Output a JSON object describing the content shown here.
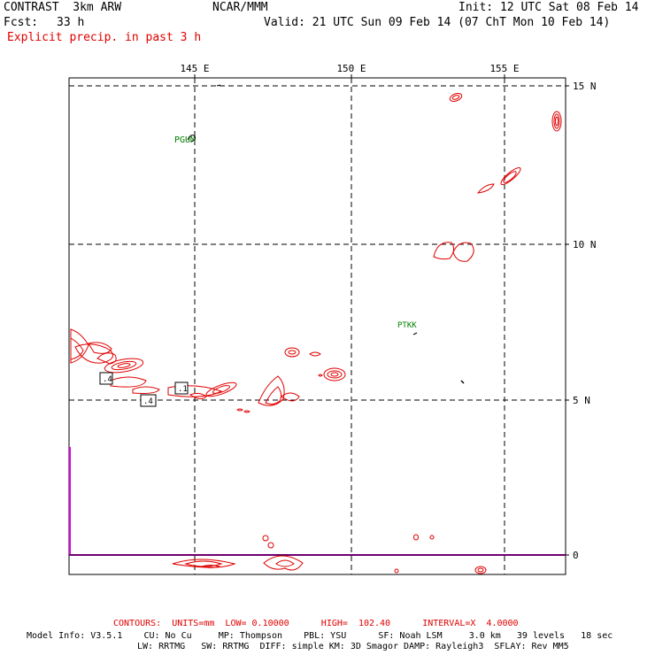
{
  "header": {
    "model": "CONTRAST  3km ARW",
    "org": "NCAR/MMM",
    "init": "Init: 12 UTC Sat 08 Feb 14",
    "fcst_label": "Fcst:",
    "fcst_value": "33 h",
    "valid": "Valid: 21 UTC Sun 09 Feb 14 (07 ChT Mon 10 Feb 14)",
    "field": "Explicit precip. in past 3 h"
  },
  "map": {
    "lon_labels": [
      "145 E",
      "150 E",
      "155 E"
    ],
    "lat_labels": [
      "15 N",
      "10 N",
      "5 N",
      "0"
    ],
    "stations": [
      {
        "id": "PGUM"
      },
      {
        "id": "PTKK"
      }
    ],
    "contour_labels": [
      ".4",
      ".1",
      ".4"
    ],
    "colors": {
      "contour": "#e00000",
      "grid": "#000000",
      "station_label": "#008000",
      "magenta_line": "#e000e0"
    }
  },
  "footer": {
    "contours_line": "CONTOURS:  UNITS=mm  LOW= 0.10000      HIGH=  102.40      INTERVAL=X  4.0000",
    "model_info_1": "Model Info: V3.5.1    CU: No Cu     MP: Thompson    PBL: YSU      SF: Noah LSM     3.0 km   39 levels   18 sec",
    "model_info_2": "LW: RRTMG   SW: RRTMG  DIFF: simple KM: 3D Smagor DAMP: Rayleigh3  SFLAY: Rev MM5"
  }
}
